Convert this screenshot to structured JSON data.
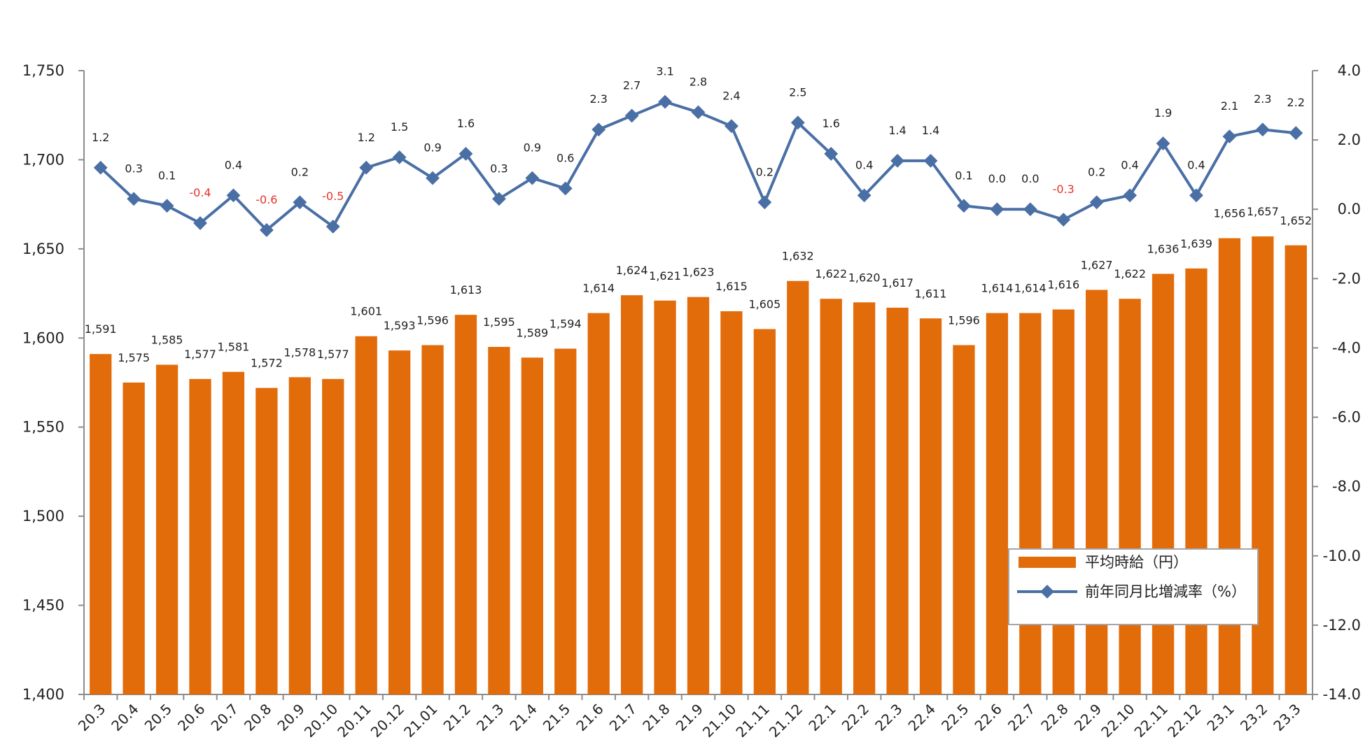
{
  "chart_data": {
    "type": "bar+line",
    "categories": [
      "20.3",
      "20.4",
      "20.5",
      "20.6",
      "20.7",
      "20.8",
      "20.9",
      "20.10",
      "20.11",
      "20.12",
      "21.01",
      "21.2",
      "21.3",
      "21.4",
      "21.5",
      "21.6",
      "21.7",
      "21.8",
      "21.9",
      "21.10",
      "21.11",
      "21.12",
      "22.1",
      "22.2",
      "22.3",
      "22.4",
      "22.5",
      "22.6",
      "22.7",
      "22.8",
      "22.9",
      "22.10",
      "22.11",
      "22.12",
      "23.1",
      "23.2",
      "23.3"
    ],
    "bar_series": {
      "name": "平均時給（円）",
      "values": [
        1591,
        1575,
        1585,
        1577,
        1581,
        1572,
        1578,
        1577,
        1601,
        1593,
        1596,
        1613,
        1595,
        1589,
        1594,
        1614,
        1624,
        1621,
        1623,
        1615,
        1605,
        1632,
        1622,
        1620,
        1617,
        1611,
        1596,
        1614,
        1614,
        1616,
        1627,
        1622,
        1636,
        1639,
        1656,
        1657,
        1652
      ],
      "labels": [
        "1,591",
        "1,575",
        "1,585",
        "1,577",
        "1,581",
        "1,572",
        "1,578",
        "1,577",
        "1,601",
        "1,593",
        "1,596",
        "1,613",
        "1,595",
        "1,589",
        "1,594",
        "1,614",
        "1,624",
        "1,621",
        "1,623",
        "1,615",
        "1,605",
        "1,632",
        "1,622",
        "1,620",
        "1,617",
        "1,611",
        "1,596",
        "1,614",
        "1,614",
        "1,616",
        "1,627",
        "1,622",
        "1,636",
        "1,639",
        "1,656",
        "1,657",
        "1,652"
      ],
      "color": "#E36C0A"
    },
    "line_series": {
      "name": "前年同月比増減率（%）",
      "values": [
        1.2,
        0.3,
        0.1,
        -0.4,
        0.4,
        -0.6,
        0.2,
        -0.5,
        1.2,
        1.5,
        0.9,
        1.6,
        0.3,
        0.9,
        0.6,
        2.3,
        2.7,
        3.1,
        2.8,
        2.4,
        0.2,
        2.5,
        1.6,
        0.4,
        1.4,
        1.4,
        0.1,
        0.0,
        0.0,
        -0.3,
        0.2,
        0.4,
        1.9,
        0.4,
        2.1,
        2.3,
        2.2
      ],
      "labels": [
        "1.2",
        "0.3",
        "0.1",
        "-0.4",
        "0.4",
        "-0.6",
        "0.2",
        "-0.5",
        "1.2",
        "1.5",
        "0.9",
        "1.6",
        "0.3",
        "0.9",
        "0.6",
        "2.3",
        "2.7",
        "3.1",
        "2.8",
        "2.4",
        "0.2",
        "2.5",
        "1.6",
        "0.4",
        "1.4",
        "1.4",
        "0.1",
        "0.0",
        "0.0",
        "-0.3",
        "0.2",
        "0.4",
        "1.9",
        "0.4",
        "2.1",
        "2.3",
        "2.2"
      ],
      "color": "#4A6FA5",
      "negative_label_color": "#E8312A"
    },
    "y_left": {
      "min": 1400,
      "max": 1750,
      "step": 50,
      "tick_labels": [
        "1,400",
        "1,450",
        "1,500",
        "1,550",
        "1,600",
        "1,650",
        "1,700",
        "1,750"
      ]
    },
    "y_right": {
      "min": -14.0,
      "max": 4.0,
      "step": 2.0,
      "tick_labels": [
        "-14.0",
        "-12.0",
        "-10.0",
        "-8.0",
        "-6.0",
        "-4.0",
        "-2.0",
        "0.0",
        "2.0",
        "4.0"
      ]
    },
    "legend": {
      "placement": "bottom-right",
      "bar_label": "平均時給（円）",
      "line_label": "前年同月比増減率（%）"
    },
    "grid": false
  }
}
